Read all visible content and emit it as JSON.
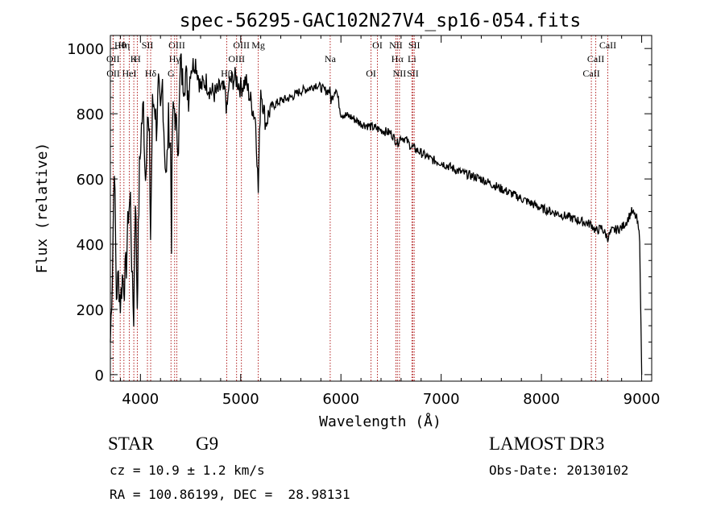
{
  "chart_data": {
    "type": "line",
    "title": "spec-56295-GAC102N27V4_sp16-054.fits",
    "xlabel": "Wavelength (Å)",
    "ylabel": "Flux (relative)",
    "xlim": [
      3700,
      9100
    ],
    "ylim": [
      -20,
      1040
    ],
    "xticks": [
      4000,
      5000,
      6000,
      7000,
      8000,
      9000
    ],
    "xtick_labels": [
      "4000",
      "5000",
      "6000",
      "7000",
      "8000",
      "9000"
    ],
    "yticks": [
      0,
      200,
      400,
      600,
      800,
      1000
    ],
    "ytick_labels": [
      "0",
      "200",
      "400",
      "600",
      "800",
      "1000"
    ],
    "series": [
      {
        "name": "flux",
        "x": [
          3700,
          3720,
          3740,
          3760,
          3780,
          3800,
          3820,
          3840,
          3860,
          3880,
          3900,
          3920,
          3933,
          3950,
          3968,
          3990,
          4010,
          4030,
          4050,
          4070,
          4090,
          4101,
          4120,
          4140,
          4160,
          4180,
          4200,
          4220,
          4240,
          4260,
          4280,
          4300,
          4310,
          4320,
          4340,
          4360,
          4380,
          4400,
          4420,
          4450,
          4480,
          4500,
          4550,
          4600,
          4650,
          4700,
          4750,
          4800,
          4850,
          4861,
          4880,
          4900,
          4950,
          5000,
          5050,
          5100,
          5150,
          5175,
          5200,
          5250,
          5300,
          5400,
          5500,
          5600,
          5700,
          5750,
          5800,
          5850,
          5890,
          5900,
          5950,
          6000,
          6100,
          6200,
          6300,
          6400,
          6500,
          6563,
          6600,
          6650,
          6700,
          6800,
          6900,
          7000,
          7200,
          7400,
          7600,
          7800,
          8000,
          8200,
          8400,
          8500,
          8542,
          8600,
          8662,
          8700,
          8800,
          8850,
          8900,
          8950,
          8980,
          9000
        ],
        "values": [
          100,
          320,
          660,
          240,
          300,
          220,
          300,
          280,
          340,
          500,
          540,
          260,
          180,
          560,
          220,
          620,
          760,
          820,
          600,
          800,
          700,
          420,
          820,
          840,
          760,
          880,
          780,
          900,
          700,
          600,
          780,
          700,
          420,
          780,
          820,
          740,
          720,
          960,
          900,
          920,
          860,
          940,
          960,
          880,
          900,
          870,
          860,
          880,
          860,
          800,
          880,
          900,
          910,
          880,
          900,
          840,
          780,
          560,
          880,
          770,
          820,
          840,
          850,
          870,
          880,
          890,
          880,
          870,
          870,
          840,
          880,
          800,
          790,
          770,
          760,
          750,
          740,
          710,
          730,
          720,
          700,
          680,
          660,
          650,
          620,
          600,
          570,
          540,
          510,
          490,
          470,
          460,
          440,
          450,
          420,
          440,
          450,
          470,
          500,
          480,
          420,
          0
        ]
      }
    ],
    "line_markers": [
      {
        "label": "Hθ",
        "wl": 3798
      },
      {
        "label": "K",
        "wl": 3934
      },
      {
        "label": "Hδ",
        "wl": 4102
      },
      {
        "label": "OIII",
        "wl": 4363
      },
      {
        "label": "OII",
        "wl": 3727
      },
      {
        "label": "HeI",
        "wl": 3889
      },
      {
        "label": "SII",
        "wl": 4070
      },
      {
        "label": "Hγ",
        "wl": 4341
      },
      {
        "label": "OII",
        "wl": 3729
      },
      {
        "label": "Hη",
        "wl": 3835
      },
      {
        "label": "H",
        "wl": 3969
      },
      {
        "label": "G",
        "wl": 4305
      },
      {
        "label": "OIII",
        "wl": 5007
      },
      {
        "label": "OIII",
        "wl": 4959
      },
      {
        "label": "Hβ",
        "wl": 4861
      },
      {
        "label": "Mg",
        "wl": 5175
      },
      {
        "label": "Na",
        "wl": 5893
      },
      {
        "label": "OI",
        "wl": 6300
      },
      {
        "label": "OI",
        "wl": 6364
      },
      {
        "label": "Hα",
        "wl": 6563
      },
      {
        "label": "SII",
        "wl": 6717
      },
      {
        "label": "NII",
        "wl": 6548
      },
      {
        "label": "Li",
        "wl": 6708
      },
      {
        "label": "NII",
        "wl": 6584
      },
      {
        "label": "SII",
        "wl": 6731
      },
      {
        "label": "CaII",
        "wl": 8542
      },
      {
        "label": "CaII",
        "wl": 8498
      },
      {
        "label": "CaII",
        "wl": 8662
      }
    ]
  },
  "footer": {
    "object_class": "STAR",
    "subclass": "G9",
    "survey": "LAMOST DR3",
    "cz": "cz = 10.9 ± 1.2 km/s",
    "obs_date": "Obs-Date: 20130102",
    "coords": "RA = 100.86199, DEC =  28.98131"
  },
  "colors": {
    "line": "#000000",
    "marker": "#b22222",
    "axis": "#000000"
  }
}
